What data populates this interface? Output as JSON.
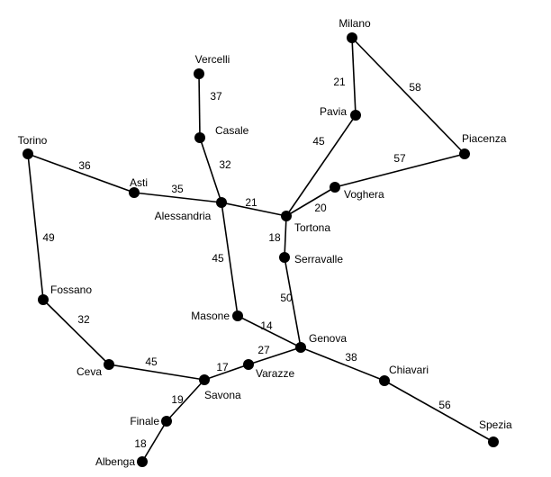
{
  "graph": {
    "colors": {
      "line": "#000000",
      "node": "#000000",
      "background": "#ffffff"
    },
    "cities": [
      "Milano",
      "Vercelli",
      "Pavia",
      "Casale",
      "Piacenza",
      "Torino",
      "Asti",
      "Voghera",
      "Alessandria",
      "Tortona",
      "Serravalle",
      "Fossano",
      "Masone",
      "Genova",
      "Chiavari",
      "Varazze",
      "Ceva",
      "Savona",
      "Finale",
      "Spezia",
      "Albenga"
    ],
    "roads": [
      {
        "from": "Milano",
        "to": "Pavia",
        "km": "21"
      },
      {
        "from": "Milano",
        "to": "Piacenza",
        "km": "58"
      },
      {
        "from": "Vercelli",
        "to": "Casale",
        "km": "37"
      },
      {
        "from": "Casale",
        "to": "Alessandria",
        "km": "32"
      },
      {
        "from": "Pavia",
        "to": "Tortona",
        "km": "45"
      },
      {
        "from": "Piacenza",
        "to": "Voghera",
        "km": "57"
      },
      {
        "from": "Voghera",
        "to": "Tortona",
        "km": "20"
      },
      {
        "from": "Torino",
        "to": "Asti",
        "km": "36"
      },
      {
        "from": "Asti",
        "to": "Alessandria",
        "km": "35"
      },
      {
        "from": "Alessandria",
        "to": "Tortona",
        "km": "21"
      },
      {
        "from": "Tortona",
        "to": "Serravalle",
        "km": "18"
      },
      {
        "from": "Torino",
        "to": "Fossano",
        "km": "49"
      },
      {
        "from": "Alessandria",
        "to": "Masone",
        "km": "45"
      },
      {
        "from": "Serravalle",
        "to": "Genova",
        "km": "50"
      },
      {
        "from": "Fossano",
        "to": "Ceva",
        "km": "32"
      },
      {
        "from": "Masone",
        "to": "Genova",
        "km": "14"
      },
      {
        "from": "Genova",
        "to": "Varazze",
        "km": "27"
      },
      {
        "from": "Genova",
        "to": "Chiavari",
        "km": "38"
      },
      {
        "from": "Ceva",
        "to": "Savona",
        "km": "45"
      },
      {
        "from": "Varazze",
        "to": "Savona",
        "km": "17"
      },
      {
        "from": "Chiavari",
        "to": "Spezia",
        "km": "56"
      },
      {
        "from": "Savona",
        "to": "Finale",
        "km": "19"
      },
      {
        "from": "Finale",
        "to": "Albenga",
        "km": "18"
      }
    ]
  }
}
